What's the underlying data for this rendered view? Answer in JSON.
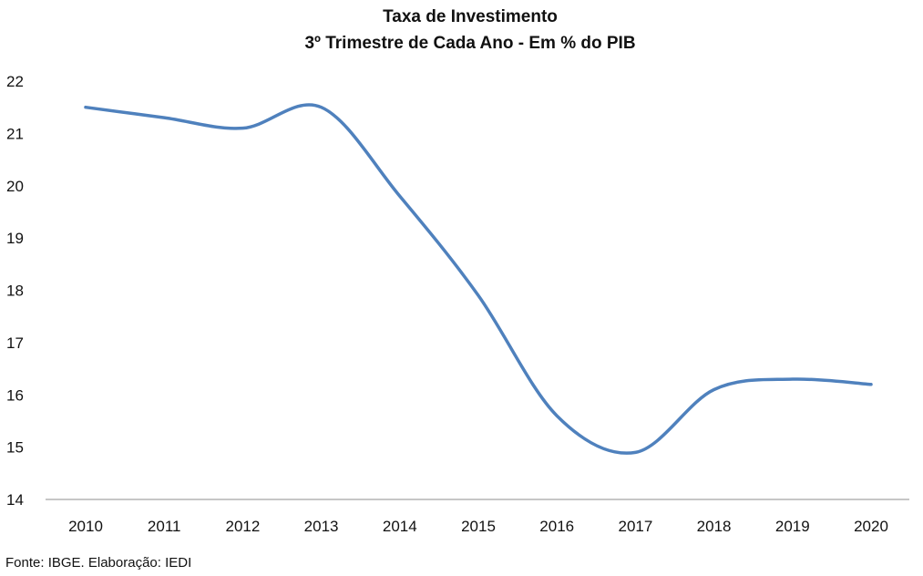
{
  "chart_data": {
    "type": "line",
    "title": "Taxa de Investimento",
    "subtitle": "3º Trimestre de Cada Ano - Em % do PIB",
    "xlabel": "",
    "ylabel": "",
    "categories": [
      "2010",
      "2011",
      "2012",
      "2013",
      "2014",
      "2015",
      "2016",
      "2017",
      "2018",
      "2019",
      "2020"
    ],
    "series": [
      {
        "values": [
          21.5,
          21.3,
          21.1,
          21.5,
          19.8,
          17.9,
          15.6,
          14.9,
          16.1,
          16.3,
          16.2
        ],
        "color": "#4f81bd"
      }
    ],
    "ylim": [
      14,
      22
    ],
    "yticks": [
      14,
      15,
      16,
      17,
      18,
      19,
      20,
      21,
      22
    ],
    "grid": false,
    "legend": "none",
    "smooth": true
  },
  "source_note": "Fonte: IBGE. Elaboração: IEDI",
  "colors": {
    "line": "#4f81bd",
    "axis": "#8c8c8c",
    "text": "#111111"
  }
}
